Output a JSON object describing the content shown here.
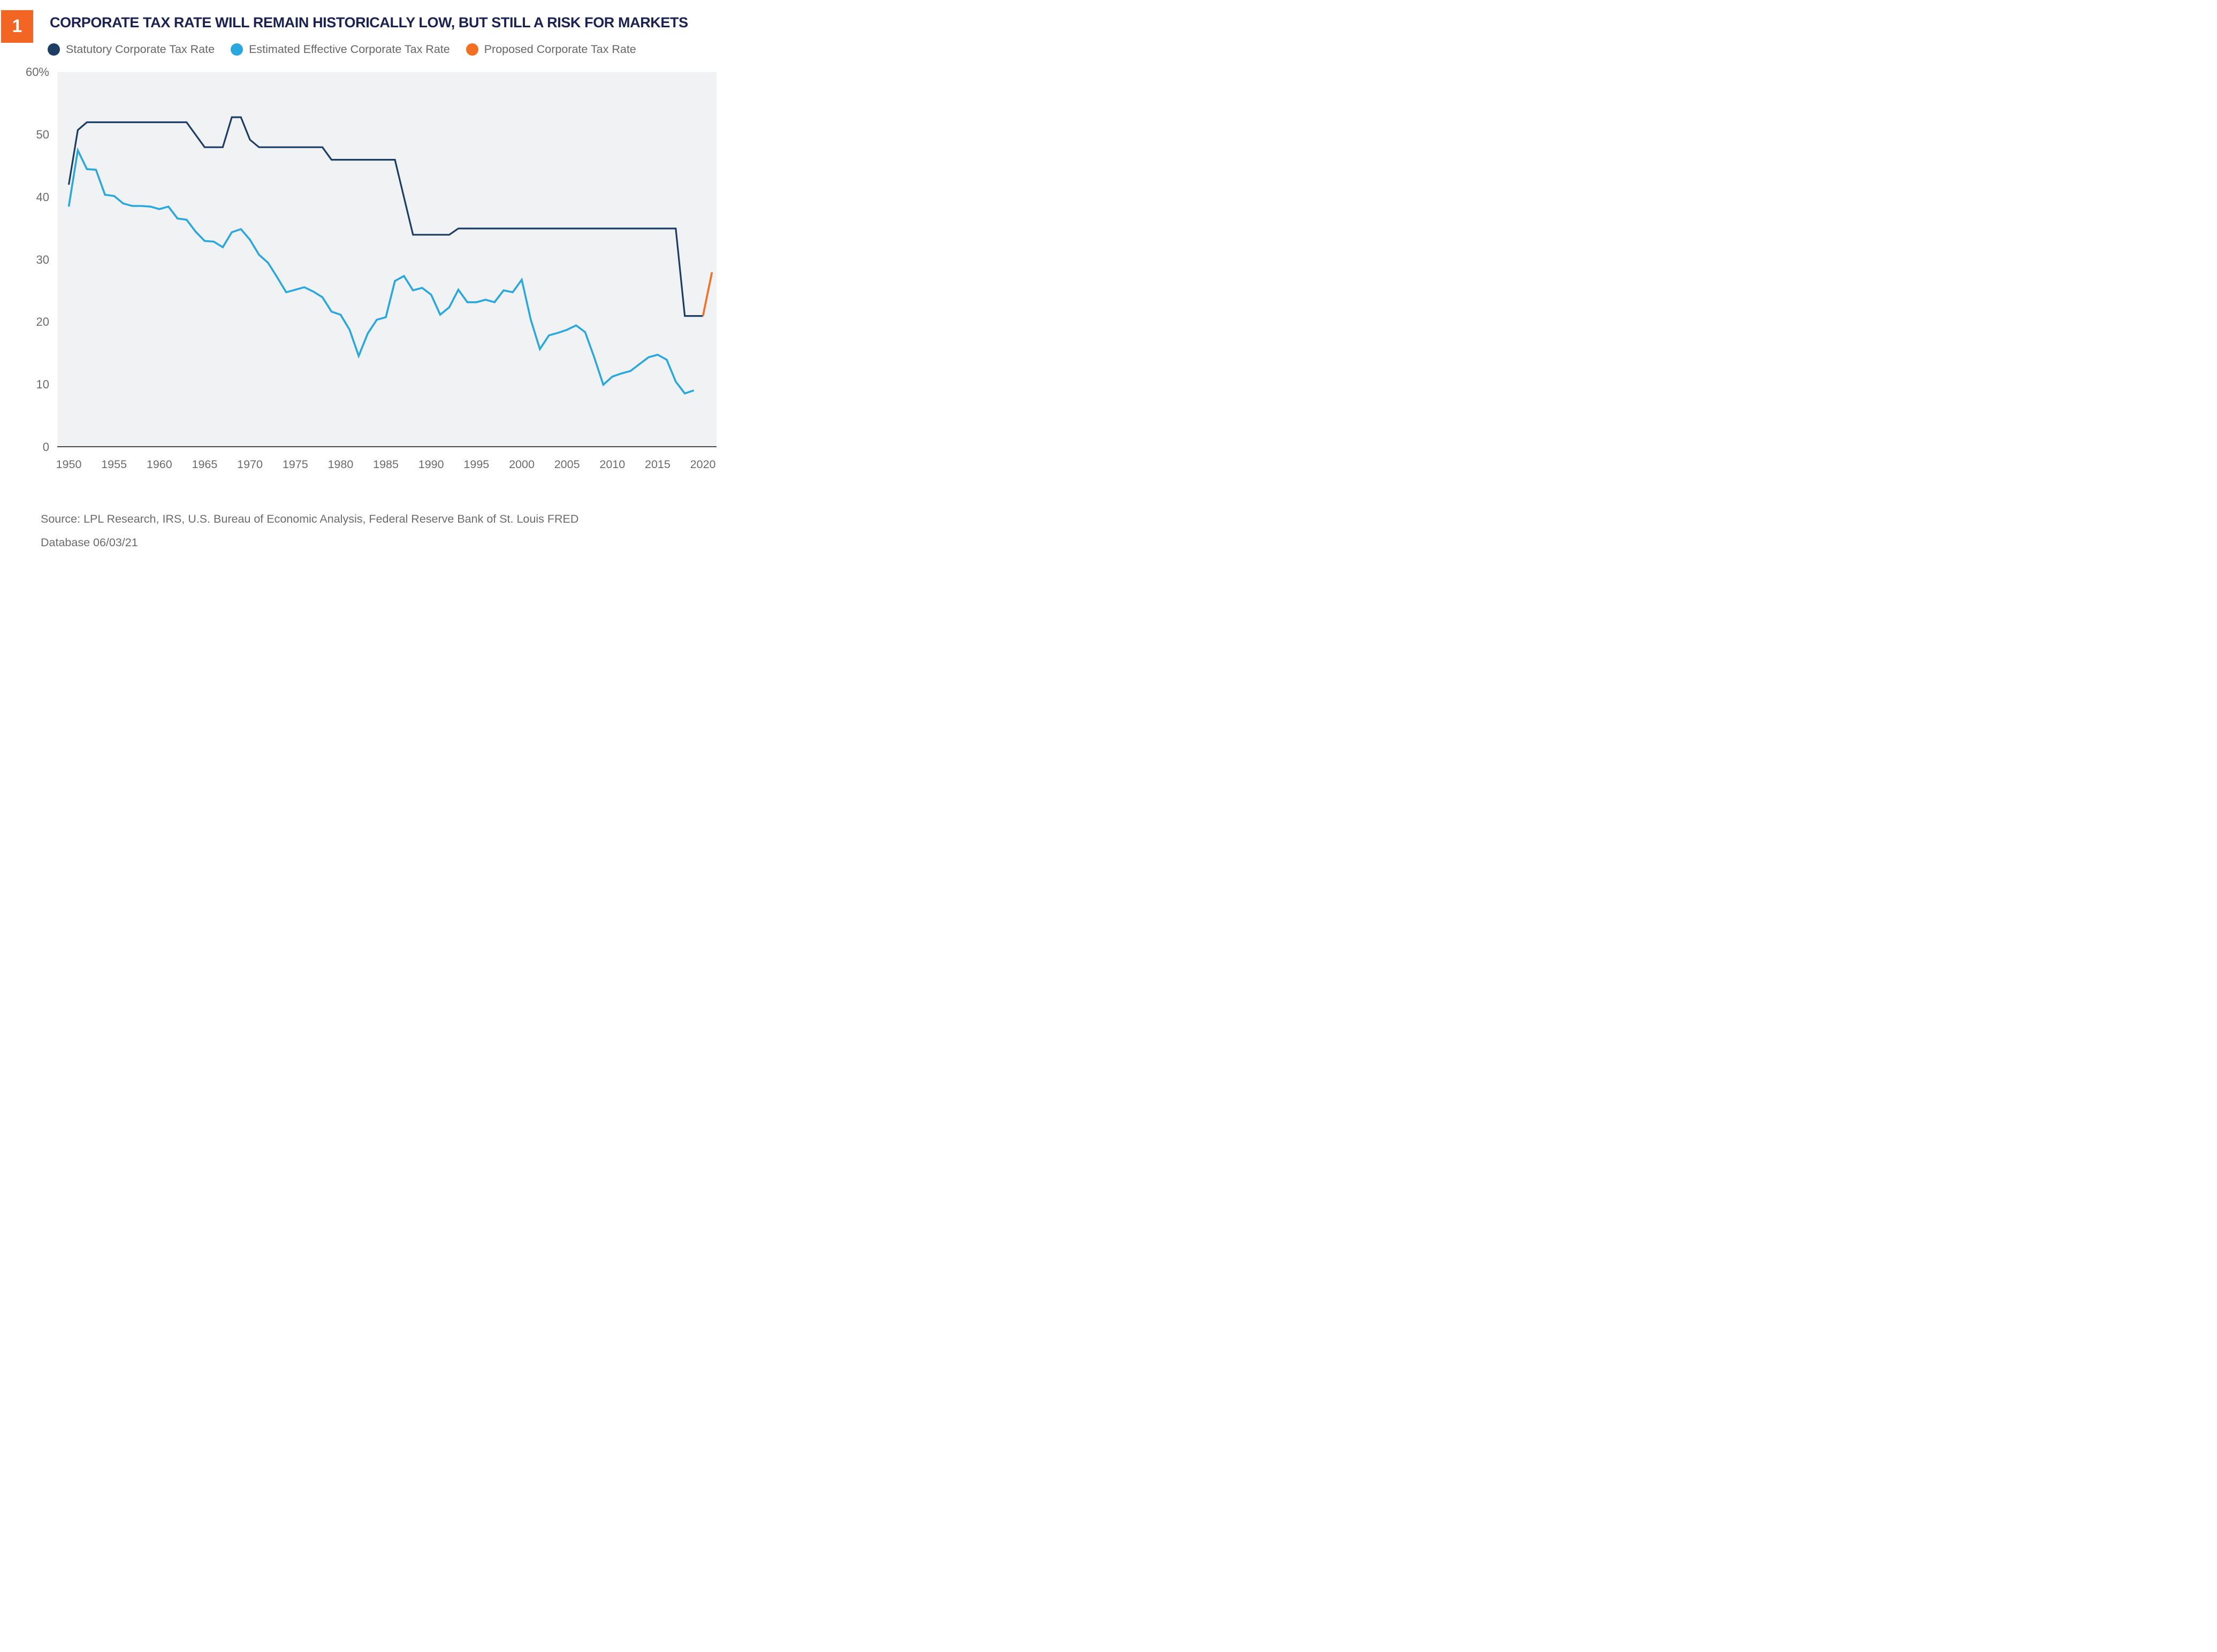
{
  "header": {
    "figure_number": "1",
    "title": "CORPORATE TAX RATE WILL REMAIN HISTORICALLY LOW, BUT STILL A RISK FOR MARKETS"
  },
  "source": {
    "line1": "Source: LPL Research, IRS, U.S. Bureau of Economic Analysis, Federal Reserve Bank of St. Louis FRED",
    "line2": "Database 06/03/21"
  },
  "colors": {
    "badge_bg": "#F26522",
    "badge_text": "#FFFFFF",
    "title_text": "#1A2253",
    "legend_text": "#666666",
    "axis_text": "#6B6B6B",
    "axis_line": "#4A4A4A",
    "plot_bg": "#F0F2F4",
    "statutory": "#1D3E64",
    "effective": "#29A8E0",
    "proposed": "#F36F21"
  },
  "chart_data": {
    "type": "line",
    "title": "CORPORATE TAX RATE WILL REMAIN HISTORICALLY LOW, BUT STILL A RISK FOR MARKETS",
    "xlabel": "",
    "ylabel": "",
    "ylim": [
      0,
      60
    ],
    "xlim": [
      1948.7,
      2021.5
    ],
    "grid": false,
    "legend_position": "top",
    "y_ticks": [
      {
        "label": "60%",
        "value": 60
      },
      {
        "label": "50",
        "value": 50
      },
      {
        "label": "40",
        "value": 40
      },
      {
        "label": "30",
        "value": 30
      },
      {
        "label": "20",
        "value": 20
      },
      {
        "label": "10",
        "value": 10
      },
      {
        "label": "0",
        "value": 0
      }
    ],
    "x_ticks": [
      1950,
      1955,
      1960,
      1965,
      1970,
      1975,
      1980,
      1985,
      1990,
      1995,
      2000,
      2005,
      2010,
      2015,
      2020
    ],
    "series": [
      {
        "name": "Statutory Corporate Tax Rate",
        "color": "#1D3E64",
        "stroke_width": 3.2,
        "points": [
          [
            1950,
            42
          ],
          [
            1951,
            50.75
          ],
          [
            1952,
            52
          ],
          [
            1953,
            52
          ],
          [
            1954,
            52
          ],
          [
            1955,
            52
          ],
          [
            1956,
            52
          ],
          [
            1957,
            52
          ],
          [
            1958,
            52
          ],
          [
            1959,
            52
          ],
          [
            1960,
            52
          ],
          [
            1961,
            52
          ],
          [
            1962,
            52
          ],
          [
            1963,
            52
          ],
          [
            1964,
            50
          ],
          [
            1965,
            48
          ],
          [
            1966,
            48
          ],
          [
            1967,
            48
          ],
          [
            1968,
            52.8
          ],
          [
            1969,
            52.8
          ],
          [
            1970,
            49.2
          ],
          [
            1971,
            48
          ],
          [
            1972,
            48
          ],
          [
            1973,
            48
          ],
          [
            1974,
            48
          ],
          [
            1975,
            48
          ],
          [
            1976,
            48
          ],
          [
            1977,
            48
          ],
          [
            1978,
            48
          ],
          [
            1979,
            46
          ],
          [
            1980,
            46
          ],
          [
            1981,
            46
          ],
          [
            1982,
            46
          ],
          [
            1983,
            46
          ],
          [
            1984,
            46
          ],
          [
            1985,
            46
          ],
          [
            1986,
            46
          ],
          [
            1987,
            40
          ],
          [
            1988,
            34
          ],
          [
            1989,
            34
          ],
          [
            1990,
            34
          ],
          [
            1991,
            34
          ],
          [
            1992,
            34
          ],
          [
            1993,
            35
          ],
          [
            1994,
            35
          ],
          [
            1995,
            35
          ],
          [
            1996,
            35
          ],
          [
            1997,
            35
          ],
          [
            1998,
            35
          ],
          [
            1999,
            35
          ],
          [
            2000,
            35
          ],
          [
            2001,
            35
          ],
          [
            2002,
            35
          ],
          [
            2003,
            35
          ],
          [
            2004,
            35
          ],
          [
            2005,
            35
          ],
          [
            2006,
            35
          ],
          [
            2007,
            35
          ],
          [
            2008,
            35
          ],
          [
            2009,
            35
          ],
          [
            2010,
            35
          ],
          [
            2011,
            35
          ],
          [
            2012,
            35
          ],
          [
            2013,
            35
          ],
          [
            2014,
            35
          ],
          [
            2015,
            35
          ],
          [
            2016,
            35
          ],
          [
            2017,
            35
          ],
          [
            2018,
            21
          ],
          [
            2019,
            21
          ],
          [
            2020,
            21
          ]
        ]
      },
      {
        "name": "Estimated Effective Corporate Tax Rate",
        "color": "#29A8E0",
        "stroke_width": 3.6,
        "points": [
          [
            1950,
            38.5
          ],
          [
            1951,
            47.5
          ],
          [
            1952,
            44.5
          ],
          [
            1953,
            44.4
          ],
          [
            1954,
            40.4
          ],
          [
            1955,
            40.2
          ],
          [
            1956,
            39
          ],
          [
            1957,
            38.6
          ],
          [
            1958,
            38.6
          ],
          [
            1959,
            38.5
          ],
          [
            1960,
            38.1
          ],
          [
            1961,
            38.5
          ],
          [
            1962,
            36.6
          ],
          [
            1963,
            36.4
          ],
          [
            1964,
            34.5
          ],
          [
            1965,
            33
          ],
          [
            1966,
            32.9
          ],
          [
            1967,
            32
          ],
          [
            1968,
            34.4
          ],
          [
            1969,
            34.9
          ],
          [
            1970,
            33.2
          ],
          [
            1971,
            30.8
          ],
          [
            1972,
            29.5
          ],
          [
            1973,
            27.2
          ],
          [
            1974,
            24.8
          ],
          [
            1975,
            25.2
          ],
          [
            1976,
            25.6
          ],
          [
            1977,
            24.9
          ],
          [
            1978,
            24
          ],
          [
            1979,
            21.7
          ],
          [
            1980,
            21.2
          ],
          [
            1981,
            18.8
          ],
          [
            1982,
            14.6
          ],
          [
            1983,
            18.2
          ],
          [
            1984,
            20.4
          ],
          [
            1985,
            20.8
          ],
          [
            1986,
            26.6
          ],
          [
            1987,
            27.4
          ],
          [
            1988,
            25.1
          ],
          [
            1989,
            25.5
          ],
          [
            1990,
            24.4
          ],
          [
            1991,
            21.2
          ],
          [
            1992,
            22.4
          ],
          [
            1993,
            25.2
          ],
          [
            1994,
            23.2
          ],
          [
            1995,
            23.2
          ],
          [
            1996,
            23.6
          ],
          [
            1997,
            23.2
          ],
          [
            1998,
            25.1
          ],
          [
            1999,
            24.8
          ],
          [
            2000,
            26.8
          ],
          [
            2001,
            20.4
          ],
          [
            2002,
            15.7
          ],
          [
            2003,
            17.9
          ],
          [
            2004,
            18.3
          ],
          [
            2005,
            18.8
          ],
          [
            2006,
            19.5
          ],
          [
            2007,
            18.4
          ],
          [
            2008,
            14.4
          ],
          [
            2009,
            10
          ],
          [
            2010,
            11.3
          ],
          [
            2011,
            11.8
          ],
          [
            2012,
            12.2
          ],
          [
            2013,
            13.3
          ],
          [
            2014,
            14.4
          ],
          [
            2015,
            14.8
          ],
          [
            2016,
            14
          ],
          [
            2017,
            10.5
          ],
          [
            2018,
            8.6
          ],
          [
            2019,
            9.1
          ]
        ]
      },
      {
        "name": "Proposed Corporate Tax Rate",
        "color": "#F36F21",
        "stroke_width": 3.6,
        "points": [
          [
            2020,
            21
          ],
          [
            2021,
            28
          ]
        ]
      }
    ]
  }
}
